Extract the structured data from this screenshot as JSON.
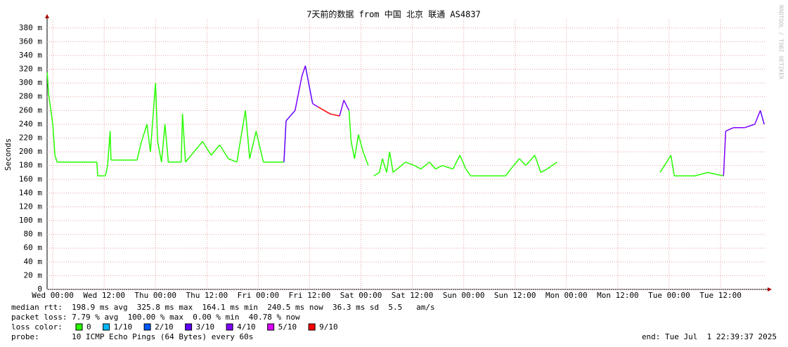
{
  "chart_data": {
    "type": "line",
    "title": "7天前的数据 from 中国 北京 联通 AS4837",
    "y_label": "Seconds",
    "side_label": "RRDTOOL / TOBI OETIKER",
    "x": [
      -1.3,
      -1,
      0,
      0.5,
      1,
      10.3,
      10.5,
      12.3,
      12.8,
      13.4,
      13.6,
      19.7,
      20.5,
      22,
      22.8,
      24,
      24.5,
      25.4,
      26.2,
      27,
      30,
      30.3,
      31,
      33,
      35,
      37,
      39,
      41,
      43,
      45,
      46,
      47.5,
      49.2,
      54,
      54.5,
      56.6,
      58.2,
      59,
      60.7,
      62,
      64.8,
      67,
      68,
      69.2,
      69.7,
      70.5,
      71.4,
      72.5,
      73.7,
      74.3,
      75,
      76.3,
      77,
      78,
      78.7,
      79.5,
      82.4,
      84.5,
      86,
      88,
      89.4,
      91,
      93.5,
      95.1,
      96.5,
      97.6,
      105.8,
      107,
      109,
      110.5,
      112.6,
      114,
      115.5,
      117.8,
      130,
      141.9,
      144.4,
      145.2,
      150,
      153,
      156.7,
      157.2,
      159,
      161.6,
      164,
      165.3,
      166.2
    ],
    "series": [
      {
        "name": "median rtt",
        "color": "#00ff00",
        "values": [
          315,
          285,
          240,
          195,
          185,
          185,
          165,
          165,
          180,
          230,
          188,
          188,
          210,
          240,
          200,
          300,
          215,
          185,
          240,
          185,
          185,
          255,
          185,
          200,
          215,
          195,
          210,
          190,
          185,
          260,
          190,
          230,
          185,
          185,
          245,
          260,
          310,
          325,
          270,
          265,
          255,
          252,
          275,
          260,
          215,
          190,
          225,
          200,
          180,
          null,
          165,
          170,
          190,
          170,
          200,
          170,
          185,
          180,
          175,
          185,
          175,
          180,
          175,
          195,
          175,
          165,
          165,
          175,
          190,
          180,
          195,
          170,
          175,
          185,
          null,
          170,
          195,
          165,
          165,
          170,
          165,
          230,
          235,
          235,
          240,
          260,
          240
        ],
        "loss": [
          0,
          0,
          0,
          0,
          0,
          0,
          0,
          0,
          0,
          0,
          0,
          0,
          0,
          0,
          0,
          0,
          0,
          0,
          0,
          0,
          0,
          0,
          0,
          0,
          0,
          0,
          0,
          0,
          0,
          0,
          0,
          0,
          0,
          0,
          3,
          3,
          4,
          4,
          3,
          4,
          9,
          9,
          4,
          4,
          0,
          0,
          0,
          0,
          0,
          null,
          0,
          0,
          0,
          0,
          0,
          0,
          0,
          0,
          0,
          0,
          0,
          0,
          0,
          0,
          0,
          0,
          0,
          0,
          0,
          0,
          0,
          0,
          0,
          0,
          null,
          0,
          0,
          0,
          0,
          0,
          0,
          4,
          4,
          4,
          4,
          4,
          3
        ]
      }
    ],
    "loss_colors": [
      {
        "value": 0,
        "label": "0",
        "color": "#26ff00"
      },
      {
        "value": 1,
        "label": "1/10",
        "color": "#00b8ff"
      },
      {
        "value": 2,
        "label": "2/10",
        "color": "#0059ff"
      },
      {
        "value": 3,
        "label": "3/10",
        "color": "#5e00ff"
      },
      {
        "value": 4,
        "label": "4/10",
        "color": "#7e00ff"
      },
      {
        "value": 5,
        "label": "5/10",
        "color": "#dd00ff"
      },
      {
        "value": 9,
        "label": "9/10",
        "color": "#ff0000"
      }
    ],
    "xlim": [
      -1.33,
      166.67
    ],
    "xticks": [
      {
        "value": 0,
        "label": "Wed 00:00"
      },
      {
        "value": 12,
        "label": "Wed 12:00"
      },
      {
        "value": 24,
        "label": "Thu 00:00"
      },
      {
        "value": 36,
        "label": "Thu 12:00"
      },
      {
        "value": 48,
        "label": "Fri 00:00"
      },
      {
        "value": 60,
        "label": "Fri 12:00"
      },
      {
        "value": 72,
        "label": "Sat 00:00"
      },
      {
        "value": 84,
        "label": "Sat 12:00"
      },
      {
        "value": 96,
        "label": "Sun 00:00"
      },
      {
        "value": 108,
        "label": "Sun 12:00"
      },
      {
        "value": 120,
        "label": "Mon 00:00"
      },
      {
        "value": 132,
        "label": "Mon 12:00"
      },
      {
        "value": 144,
        "label": "Tue 00:00"
      },
      {
        "value": 156,
        "label": "Tue 12:00"
      }
    ],
    "ylim": [
      0,
      392
    ],
    "yticks": [
      0,
      {
        "value": 20,
        "label": "20 m"
      },
      {
        "value": 40,
        "label": "40 m"
      },
      {
        "value": 60,
        "label": "60 m"
      },
      {
        "value": 80,
        "label": "80 m"
      },
      {
        "value": 100,
        "label": "100 m"
      },
      {
        "value": 120,
        "label": "120 m"
      },
      {
        "value": 140,
        "label": "140 m"
      },
      {
        "value": 160,
        "label": "160 m"
      },
      {
        "value": 180,
        "label": "180 m"
      },
      {
        "value": 200,
        "label": "200 m"
      },
      {
        "value": 220,
        "label": "220 m"
      },
      {
        "value": 240,
        "label": "240 m"
      },
      {
        "value": 260,
        "label": "260 m"
      },
      {
        "value": 280,
        "label": "280 m"
      },
      {
        "value": 300,
        "label": "300 m"
      },
      {
        "value": 320,
        "label": "320 m"
      },
      {
        "value": 340,
        "label": "340 m"
      },
      {
        "value": 360,
        "label": "360 m"
      },
      {
        "value": 380,
        "label": "380 m"
      }
    ],
    "grid": true,
    "stats": {
      "median": "median rtt:  198.9 ms avg  325.8 ms max  164.1 ms min  240.5 ms now  36.3 ms sd  5.5   am/s",
      "loss": "packet loss: 7.79 % avg  100.00 % max  0.00 % min  40.78 % now",
      "loss_color": "loss color:",
      "probe": "probe:       10 ICMP Echo Pings (64 Bytes) every 60s",
      "end": "end: Tue Jul  1 22:39:37 2025"
    }
  }
}
